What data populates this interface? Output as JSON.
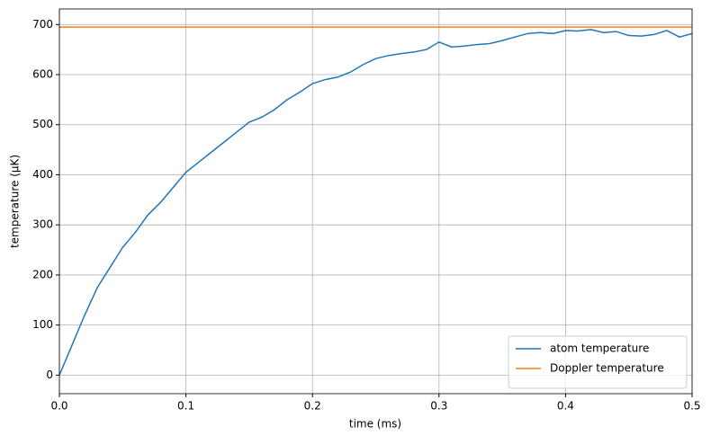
{
  "chart_data": {
    "type": "line",
    "xlabel": "time (ms)",
    "ylabel": "temperature (µK)",
    "x": [
      0,
      0.01,
      0.02,
      0.03,
      0.04,
      0.05,
      0.06,
      0.07,
      0.08,
      0.09,
      0.1,
      0.11,
      0.12,
      0.13,
      0.14,
      0.15,
      0.16,
      0.17,
      0.18,
      0.19,
      0.2,
      0.21,
      0.22,
      0.23,
      0.24,
      0.25,
      0.26,
      0.27,
      0.28,
      0.29,
      0.3,
      0.31,
      0.32,
      0.33,
      0.34,
      0.35,
      0.36,
      0.37,
      0.38,
      0.39,
      0.4,
      0.41,
      0.42,
      0.43,
      0.44,
      0.45,
      0.46,
      0.47,
      0.48,
      0.49,
      0.5
    ],
    "series": [
      {
        "name": "atom temperature",
        "color": "#1f77b4",
        "values": [
          0,
          60,
          120,
          175,
          215,
          255,
          285,
          320,
          345,
          375,
          405,
          425,
          445,
          465,
          485,
          505,
          515,
          530,
          550,
          565,
          582,
          590,
          595,
          605,
          620,
          632,
          638,
          642,
          645,
          650,
          665,
          655,
          657,
          660,
          662,
          668,
          675,
          682,
          684,
          682,
          688,
          687,
          690,
          684,
          686,
          678,
          677,
          680,
          688,
          675,
          682
        ]
      },
      {
        "name": "Doppler temperature",
        "color": "#ff7f0e",
        "x": [
          0,
          0.5
        ],
        "values": [
          695,
          695
        ]
      }
    ],
    "xlim": [
      0,
      0.5
    ],
    "ylim": [
      -37,
      731
    ],
    "xticks": [
      {
        "value": 0,
        "label": "0.0"
      },
      0.1,
      0.2,
      0.3,
      0.4,
      0.5
    ],
    "yticks": [
      0,
      100,
      200,
      300,
      400,
      500,
      600,
      700
    ],
    "grid": true,
    "legend": "lower right"
  }
}
